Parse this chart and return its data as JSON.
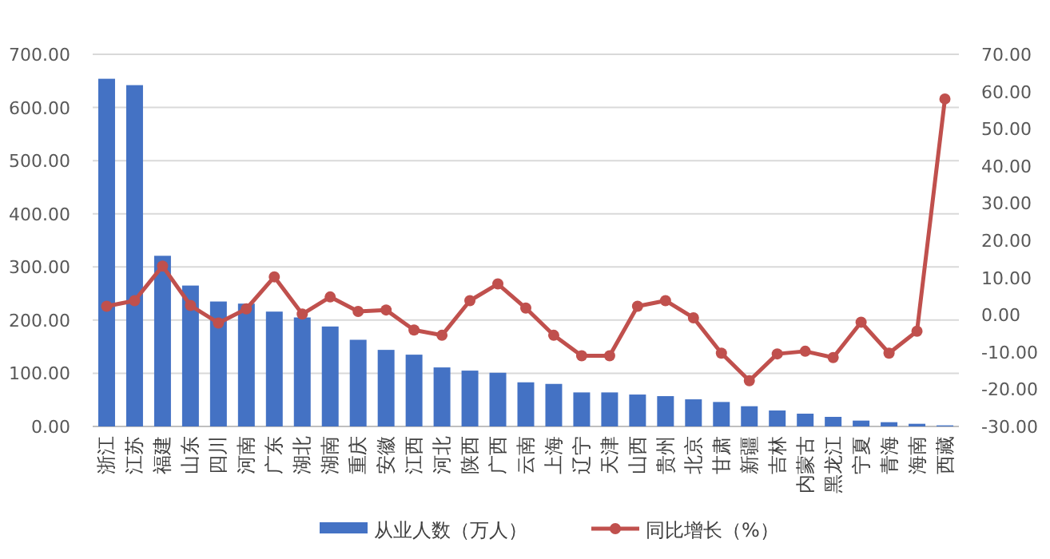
{
  "chart_data": {
    "type": "bar",
    "categories": [
      "浙江",
      "江苏",
      "福建",
      "山东",
      "四川",
      "河南",
      "广东",
      "湖北",
      "湖南",
      "重庆",
      "安徽",
      "江西",
      "河北",
      "陕西",
      "广西",
      "云南",
      "上海",
      "辽宁",
      "天津",
      "山西",
      "贵州",
      "北京",
      "甘肃",
      "新疆",
      "吉林",
      "内蒙古",
      "黑龙江",
      "宁夏",
      "青海",
      "海南",
      "西藏"
    ],
    "series": [
      {
        "name": "从业人数（万人）",
        "color": "#4472c4",
        "values": [
          654,
          642,
          321,
          265,
          235,
          231,
          216,
          205,
          188,
          163,
          144,
          135,
          111,
          105,
          101,
          83,
          80,
          64,
          64,
          60,
          57,
          51,
          46,
          38,
          30,
          24,
          18,
          11,
          8,
          5,
          2
        ]
      },
      {
        "name": "同比增长（%）",
        "type": "line",
        "axis": "y2",
        "color": "#c0504d",
        "marker": "circle",
        "values": [
          2.3,
          3.8,
          13.1,
          2.5,
          -2.2,
          1.6,
          10.2,
          0.2,
          4.8,
          0.9,
          1.3,
          -4.1,
          -5.5,
          3.8,
          8.3,
          1.8,
          -5.5,
          -11.0,
          -11.0,
          2.3,
          3.8,
          -0.8,
          -10.3,
          -17.7,
          -10.5,
          -9.8,
          -11.5,
          -2.0,
          -10.3,
          -4.4,
          58.0
        ]
      }
    ],
    "ylim": [
      0,
      700
    ],
    "yticks": [
      {
        "value": 0,
        "label": "0.00"
      },
      {
        "value": 100,
        "label": "100.00"
      },
      {
        "value": 200,
        "label": "200.00"
      },
      {
        "value": 300,
        "label": "300.00"
      },
      {
        "value": 400,
        "label": "400.00"
      },
      {
        "value": 500,
        "label": "500.00"
      },
      {
        "value": 600,
        "label": "600.00"
      },
      {
        "value": 700,
        "label": "700.00"
      }
    ],
    "y2lim": [
      -30,
      70
    ],
    "y2ticks": [
      {
        "value": -30,
        "label": "-30.00"
      },
      {
        "value": -20,
        "label": "-20.00"
      },
      {
        "value": -10,
        "label": "-10.00"
      },
      {
        "value": 0,
        "label": "0.00"
      },
      {
        "value": 10,
        "label": "10.00"
      },
      {
        "value": 20,
        "label": "20.00"
      },
      {
        "value": 30,
        "label": "30.00"
      },
      {
        "value": 40,
        "label": "40.00"
      },
      {
        "value": 50,
        "label": "50.00"
      },
      {
        "value": 60,
        "label": "60.00"
      },
      {
        "value": 70,
        "label": "70.00"
      }
    ],
    "grid": "y",
    "legend": "bottom"
  }
}
